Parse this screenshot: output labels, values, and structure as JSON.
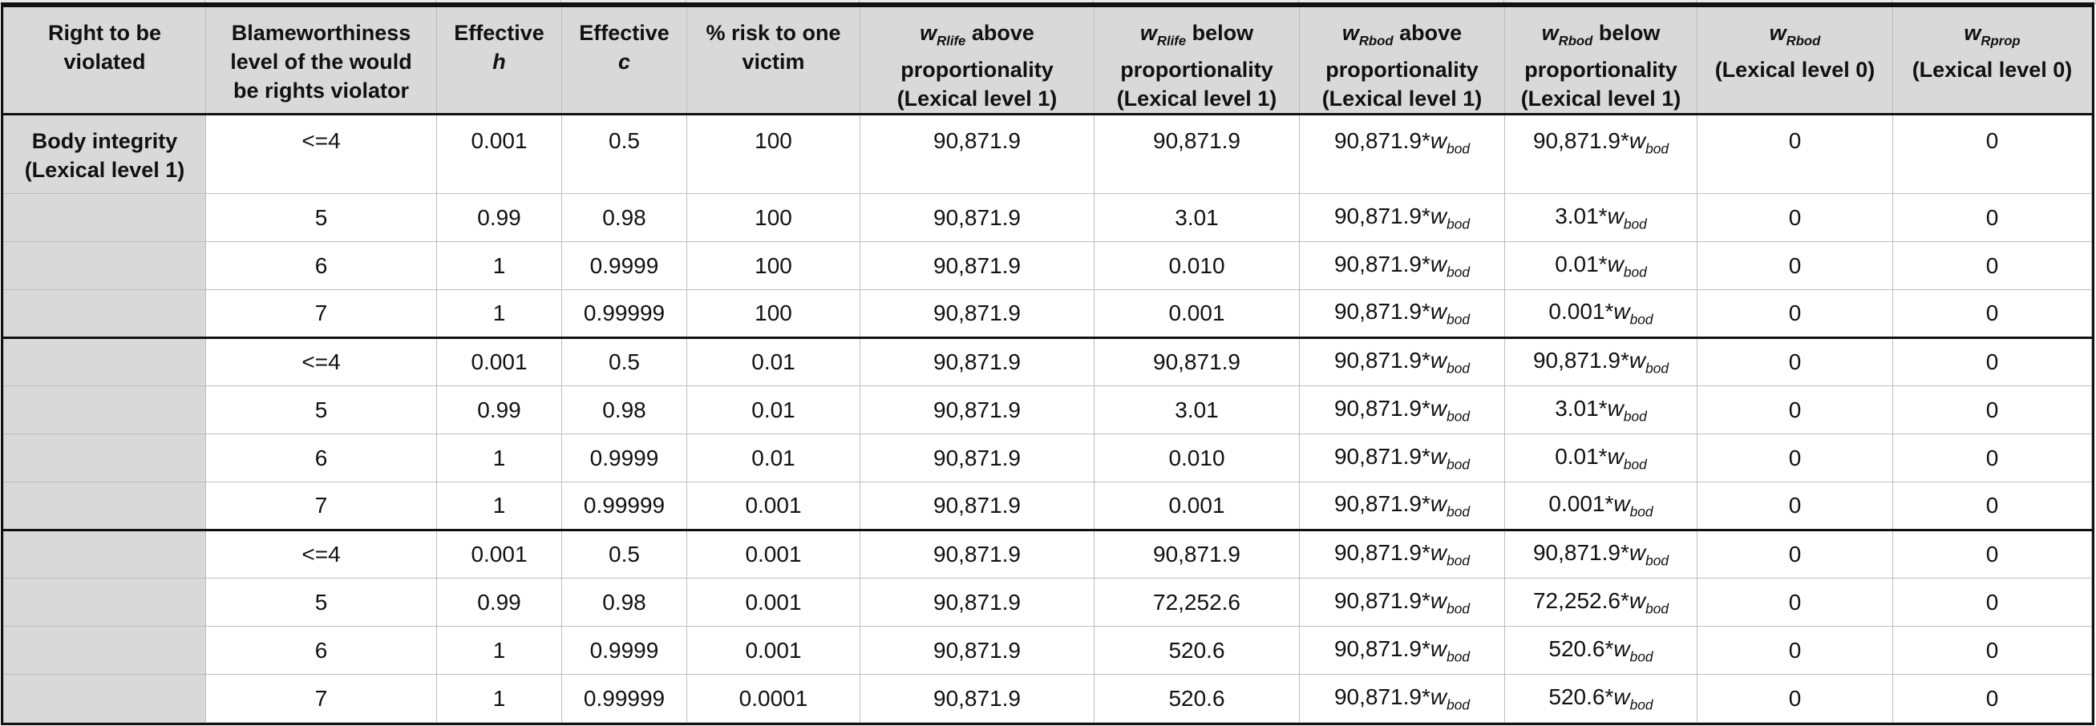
{
  "table": {
    "columns": [
      [
        "Right to be",
        "violated"
      ],
      [
        "Blameworthiness",
        "level of the would",
        "be rights violator"
      ],
      [
        "Effective",
        "h"
      ],
      [
        "Effective",
        "c"
      ],
      [
        "% risk to one",
        "victim"
      ],
      [
        "wRlife above",
        "proportionality",
        "(Lexical level 1)"
      ],
      [
        "wRlife below",
        "proportionality",
        "(Lexical level 1)"
      ],
      [
        "wRbod above",
        "proportionality",
        "(Lexical level 1)"
      ],
      [
        "wRbod below",
        "proportionality",
        "(Lexical level 1)"
      ],
      [
        "wRbod",
        "(Lexical level 0)"
      ],
      [
        "wRprop",
        "(Lexical level 0)"
      ]
    ],
    "right_label": [
      "Body integrity",
      "(Lexical level 1)"
    ],
    "groups": [
      [
        [
          "<=4",
          "0.001",
          "0.5",
          "100",
          "90,871.9",
          "90,871.9",
          "90,871.9*wbod",
          "90,871.9*wbod",
          "0",
          "0"
        ],
        [
          "5",
          "0.99",
          "0.98",
          "100",
          "90,871.9",
          "3.01",
          "90,871.9*wbod",
          "3.01*wbod",
          "0",
          "0"
        ],
        [
          "6",
          "1",
          "0.9999",
          "100",
          "90,871.9",
          "0.010",
          "90,871.9*wbod",
          "0.01*wbod",
          "0",
          "0"
        ],
        [
          "7",
          "1",
          "0.99999",
          "100",
          "90,871.9",
          "0.001",
          "90,871.9*wbod",
          "0.001*wbod",
          "0",
          "0"
        ]
      ],
      [
        [
          "<=4",
          "0.001",
          "0.5",
          "0.01",
          "90,871.9",
          "90,871.9",
          "90,871.9*wbod",
          "90,871.9*wbod",
          "0",
          "0"
        ],
        [
          "5",
          "0.99",
          "0.98",
          "0.01",
          "90,871.9",
          "3.01",
          "90,871.9*wbod",
          "3.01*wbod",
          "0",
          "0"
        ],
        [
          "6",
          "1",
          "0.9999",
          "0.01",
          "90,871.9",
          "0.010",
          "90,871.9*wbod",
          "0.01*wbod",
          "0",
          "0"
        ],
        [
          "7",
          "1",
          "0.99999",
          "0.001",
          "90,871.9",
          "0.001",
          "90,871.9*wbod",
          "0.001*wbod",
          "0",
          "0"
        ]
      ],
      [
        [
          "<=4",
          "0.001",
          "0.5",
          "0.001",
          "90,871.9",
          "90,871.9",
          "90,871.9*wbod",
          "90,871.9*wbod",
          "0",
          "0"
        ],
        [
          "5",
          "0.99",
          "0.98",
          "0.001",
          "90,871.9",
          "72,252.6",
          "90,871.9*wbod",
          "72,252.6*wbod",
          "0",
          "0"
        ],
        [
          "6",
          "1",
          "0.9999",
          "0.001",
          "90,871.9",
          "520.6",
          "90,871.9*wbod",
          "520.6*wbod",
          "0",
          "0"
        ],
        [
          "7",
          "1",
          "0.99999",
          "0.0001",
          "90,871.9",
          "520.6",
          "90,871.9*wbod",
          "520.6*wbod",
          "0",
          "0"
        ]
      ]
    ]
  }
}
